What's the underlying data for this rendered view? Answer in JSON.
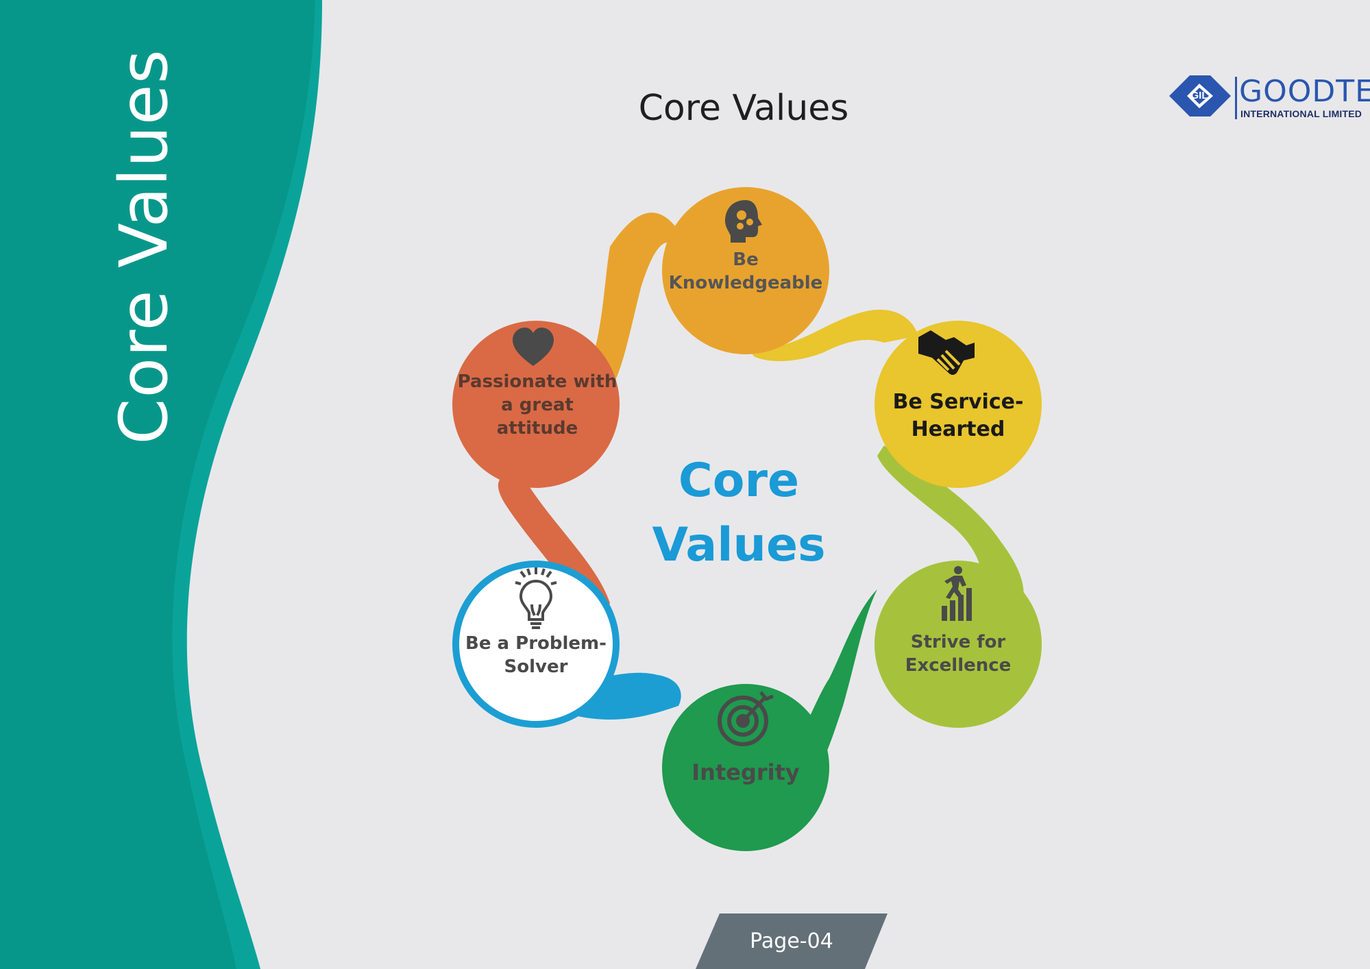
{
  "sidebar": {
    "title": "Core Values"
  },
  "header": {
    "title": "Core Values"
  },
  "logo": {
    "emblem": "GIL",
    "name": "GOODTEX",
    "subtitle": "INTERNATIONAL LIMITED",
    "color": "#2a56b0"
  },
  "footer": {
    "page": "Page-04"
  },
  "diagram": {
    "center": {
      "line1": "Core",
      "line2": "Values",
      "color": "#1a9ad6"
    },
    "values": [
      {
        "id": "knowledgeable",
        "line1": "Be",
        "line2": "Knowledgeable",
        "icon": "head-gears-icon",
        "color": "#e8a32e"
      },
      {
        "id": "service",
        "line1": "Be Service-",
        "line2": "Hearted",
        "icon": "handshake-icon",
        "color": "#e9c52e"
      },
      {
        "id": "excellence",
        "line1": "Strive for",
        "line2": "Excellence",
        "icon": "climbing-bars-icon",
        "color": "#a6c23c"
      },
      {
        "id": "integrity",
        "line1": "Integrity",
        "line2": "",
        "icon": "target-icon",
        "color": "#1f9a4e"
      },
      {
        "id": "problem",
        "line1": "Be a Problem-",
        "line2": "Solver",
        "icon": "lightbulb-icon",
        "color": "#1c9ed3"
      },
      {
        "id": "passionate",
        "line1": "Passionate with",
        "line2": "a great",
        "line3": "attitude",
        "icon": "heart-icon",
        "color": "#d96a45"
      }
    ]
  },
  "colors": {
    "teal": "#07978a",
    "teal_light": "#0aa39a",
    "background": "#e8e8ea",
    "badge": "#647078"
  }
}
